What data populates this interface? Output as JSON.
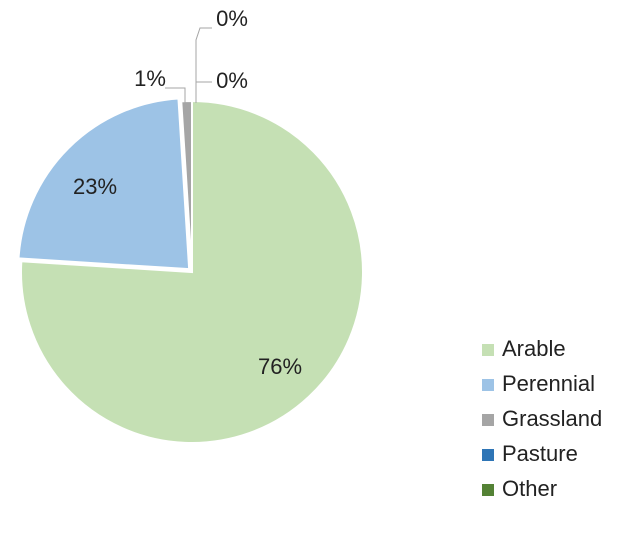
{
  "chart_data": {
    "type": "pie",
    "categories": [
      "Arable",
      "Perennial",
      "Grassland",
      "Pasture",
      "Other"
    ],
    "values": [
      76,
      23,
      1,
      0,
      0
    ],
    "value_labels": [
      "76%",
      "23%",
      "1%",
      "0%",
      "0%"
    ],
    "colors": [
      "#c5e0b4",
      "#9dc3e6",
      "#a5a5a5",
      "#2e75b6",
      "#548235"
    ],
    "legend": "right"
  }
}
